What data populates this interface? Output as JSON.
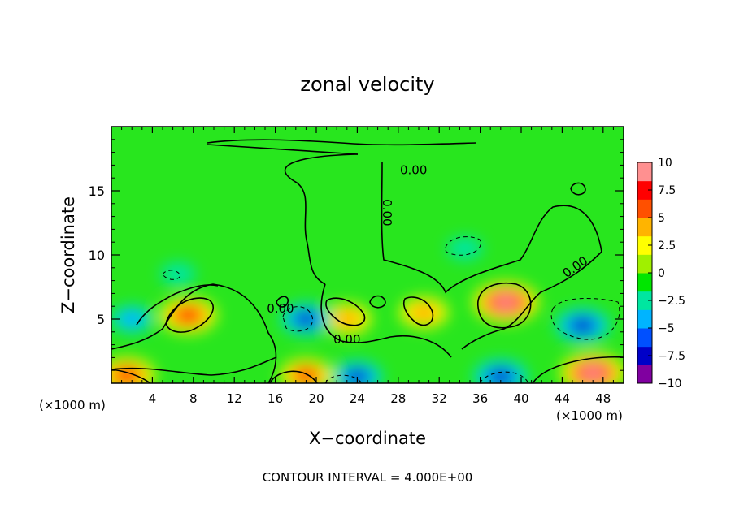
{
  "chart_data": {
    "type": "heatmap",
    "title": "zonal velocity",
    "xlabel": "X−coordinate",
    "ylabel": "Z−coordinate",
    "x_unit_left": "(×1000 m)",
    "x_unit_right": "(×1000 m)",
    "footer": "CONTOUR INTERVAL = 4.000E+00",
    "xlim": [
      0,
      50
    ],
    "ylim": [
      0,
      20
    ],
    "x_ticks": [
      4,
      8,
      12,
      16,
      20,
      24,
      28,
      32,
      36,
      40,
      44,
      48
    ],
    "x_tick_labels": [
      "4",
      "8",
      "12",
      "16",
      "20",
      "24",
      "28",
      "32",
      "36",
      "40",
      "44",
      "48"
    ],
    "y_ticks": [
      5,
      10,
      15
    ],
    "y_tick_labels": [
      "5",
      "10",
      "15"
    ],
    "colorbar": {
      "min": -10,
      "max": 10,
      "ticks": [
        10,
        7.5,
        5,
        2.5,
        0,
        -2.5,
        -5,
        -7.5,
        -10
      ],
      "tick_labels": [
        "10",
        "7.5",
        "5",
        "2.5",
        "0",
        "−2.5",
        "−5",
        "−7.5",
        "−10"
      ],
      "colors": [
        "#8000a0",
        "#0000c8",
        "#0050ff",
        "#00b4ff",
        "#00e6a0",
        "#00e600",
        "#a0f000",
        "#ffff00",
        "#ffb400",
        "#ff5000",
        "#ff0000",
        "#ff9090"
      ]
    },
    "contour_labels": [
      {
        "text": "0.00",
        "x": 16.5,
        "y": 5.5
      },
      {
        "text": "0.00",
        "x": 23.0,
        "y": 3.1
      },
      {
        "text": "0.00",
        "x": 29.5,
        "y": 16.3
      },
      {
        "text": "0.00",
        "x": 26.5,
        "y": 13.3
      },
      {
        "text": "0.00",
        "x": 45.5,
        "y": 8.8
      }
    ],
    "features": [
      {
        "x": 38.5,
        "y": 6.3,
        "value": 10
      },
      {
        "x": 7.5,
        "y": 5.3,
        "value": 8
      },
      {
        "x": 23.0,
        "y": 5.0,
        "value": 6
      },
      {
        "x": 30.5,
        "y": 5.5,
        "value": 6
      },
      {
        "x": 46.0,
        "y": 4.5,
        "value": -8
      },
      {
        "x": 19.0,
        "y": 5.0,
        "value": -7
      },
      {
        "x": 2.0,
        "y": 5.0,
        "value": -5
      },
      {
        "x": 34.5,
        "y": 10.5,
        "value": -3
      },
      {
        "x": 6.5,
        "y": 8.5,
        "value": -3
      },
      {
        "x": 38.0,
        "y": 0.5,
        "value": -8
      },
      {
        "x": 24.0,
        "y": 0.5,
        "value": -7
      },
      {
        "x": 19.0,
        "y": 0.6,
        "value": 7
      },
      {
        "x": 1.5,
        "y": 0.6,
        "value": 8
      },
      {
        "x": 47.0,
        "y": 0.8,
        "value": 10
      }
    ]
  }
}
